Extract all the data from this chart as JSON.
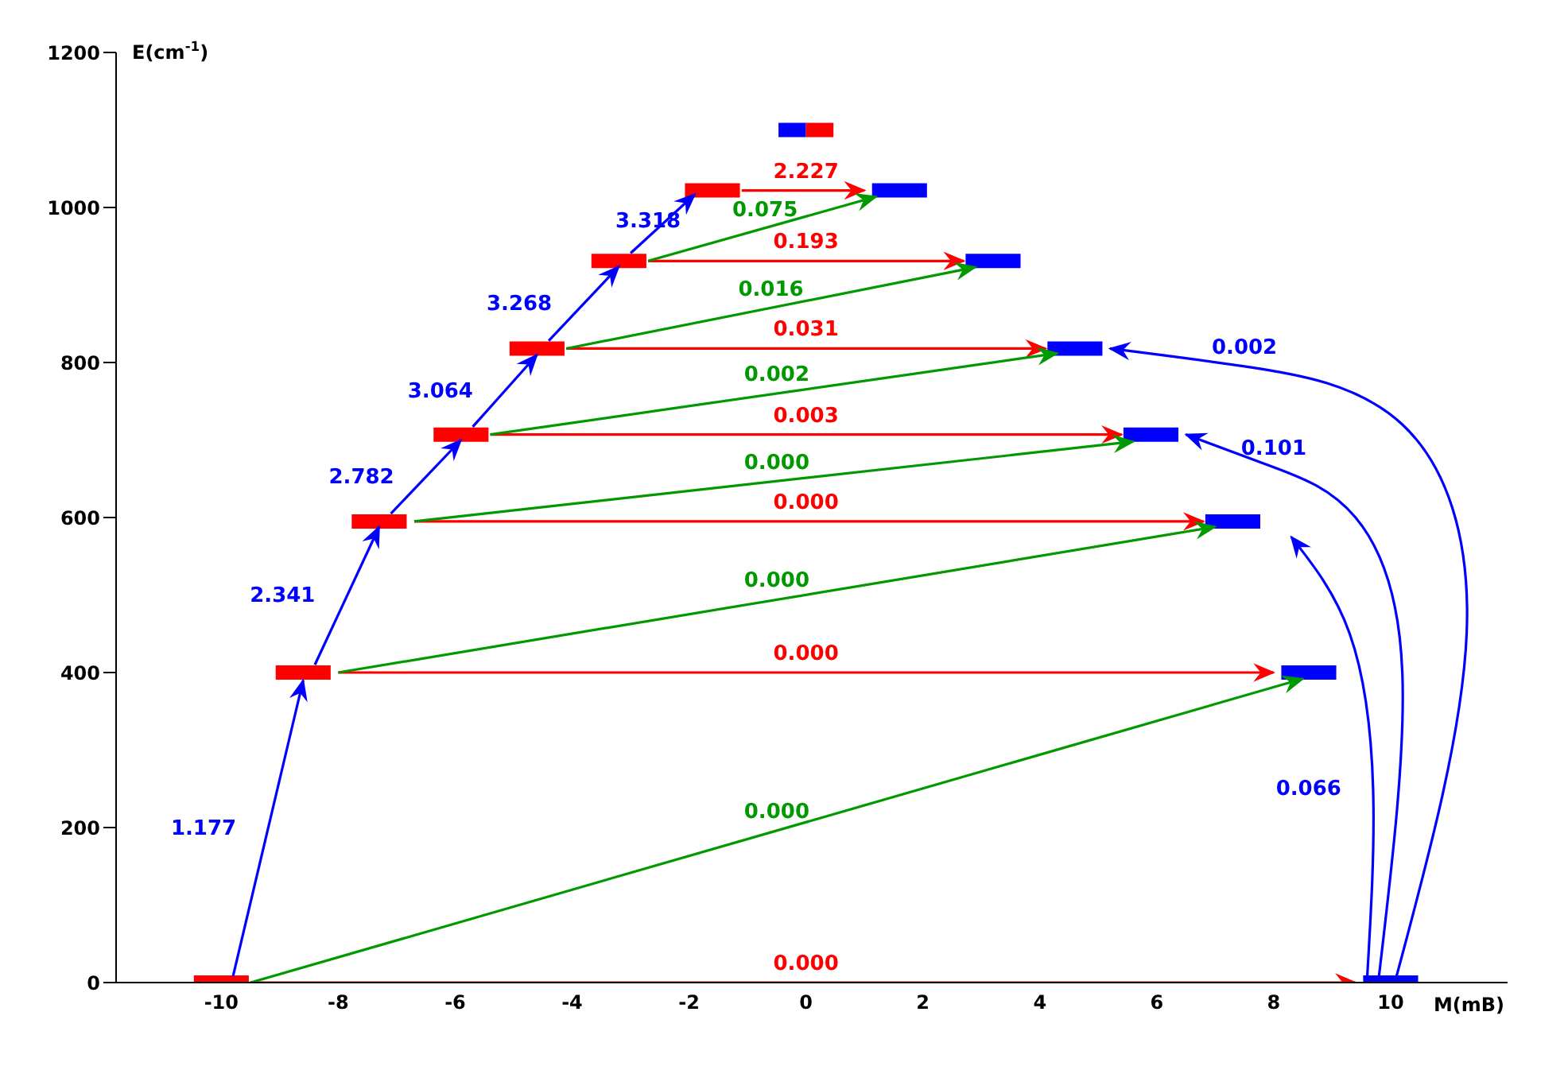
{
  "chart_data": {
    "type": "line",
    "xlabel": "M(mB)",
    "ylabel": "E(cm$^{-1}$)",
    "xlim": [
      -11.8,
      12
    ],
    "xticks": [
      -10,
      -8,
      -6,
      -4,
      -2,
      0,
      2,
      4,
      6,
      8,
      10
    ],
    "ylim": [
      0,
      1200
    ],
    "yticks": [
      0,
      200,
      400,
      600,
      800,
      1000,
      1200
    ],
    "series": [
      {
        "type": "step",
        "color": "#ff0000",
        "x": [
          -10.47,
          -9.53,
          null,
          -9.07,
          -8.13,
          null,
          -7.77,
          -6.83,
          null,
          -6.37,
          -5.43,
          null,
          -5.07,
          -4.13,
          null,
          -3.67,
          -2.73,
          null,
          -2.07,
          -1.13
        ],
        "values": [
          0,
          0,
          null,
          400,
          400,
          null,
          595,
          595,
          null,
          707,
          707,
          null,
          818,
          818,
          null,
          931,
          931,
          null,
          1022,
          1022
        ]
      },
      {
        "type": "step",
        "color": "#0000ff",
        "x": [
          9.53,
          10.47,
          null,
          8.13,
          9.07,
          null,
          6.83,
          7.77,
          null,
          5.43,
          6.37,
          null,
          4.13,
          5.07,
          null,
          2.73,
          3.67,
          null,
          1.13,
          2.07
        ],
        "values": [
          0,
          0,
          null,
          400,
          400,
          null,
          595,
          595,
          null,
          707,
          707,
          null,
          818,
          818,
          null,
          931,
          931,
          null,
          1022,
          1022
        ]
      },
      {
        "type": "step",
        "color": "#0000ff",
        "x": [
          -0.47,
          0
        ],
        "values": [
          1100,
          1100
        ]
      },
      {
        "type": "step",
        "color": "#ff0000",
        "x": [
          0,
          0.47
        ],
        "values": [
          1100,
          1100
        ]
      },
      {
        "color": "#ff0000",
        "x": [
          -9.5,
          9.4
        ],
        "values": [
          0,
          0
        ]
      },
      {
        "color": "#ff0000",
        "x": [
          -8,
          8
        ],
        "values": [
          400,
          400
        ]
      },
      {
        "color": "#ff0000",
        "x": [
          -6.7,
          6.8
        ],
        "values": [
          595,
          595
        ]
      },
      {
        "color": "#ff0000",
        "x": [
          -5.4,
          5.4
        ],
        "values": [
          707,
          707
        ]
      },
      {
        "color": "#ff0000",
        "x": [
          -4.1,
          4.1
        ],
        "values": [
          818,
          818
        ]
      },
      {
        "color": "#ff0000",
        "x": [
          -2.7,
          2.7
        ],
        "values": [
          931,
          931
        ]
      },
      {
        "color": "#ff0000",
        "x": [
          -1.1,
          1
        ],
        "values": [
          1022,
          1022
        ]
      },
      {
        "color": "#009900",
        "x": [
          -9.5,
          8.5
        ],
        "values": [
          0,
          392
        ]
      },
      {
        "color": "#009900",
        "x": [
          -8,
          7
        ],
        "values": [
          400,
          588
        ]
      },
      {
        "color": "#009900",
        "x": [
          -6.7,
          5.6
        ],
        "values": [
          595,
          698
        ]
      },
      {
        "color": "#009900",
        "x": [
          -5.4,
          4.3
        ],
        "values": [
          707,
          812
        ]
      },
      {
        "color": "#009900",
        "x": [
          -4.1,
          2.9
        ],
        "values": [
          818,
          923
        ]
      },
      {
        "color": "#009900",
        "x": [
          -2.7,
          1.2
        ],
        "values": [
          931,
          1014
        ]
      },
      {
        "color": "#0000ff",
        "x": [
          -9.8,
          -8.6
        ],
        "values": [
          8,
          390
        ]
      },
      {
        "color": "#0000ff",
        "x": [
          -8.4,
          -7.3
        ],
        "values": [
          410,
          588
        ]
      },
      {
        "color": "#0000ff",
        "x": [
          -7.1,
          -5.9
        ],
        "values": [
          605,
          700
        ]
      },
      {
        "color": "#0000ff",
        "x": [
          -5.7,
          -4.6
        ],
        "values": [
          717,
          810
        ]
      },
      {
        "color": "#0000ff",
        "x": [
          -4.4,
          -3.2
        ],
        "values": [
          828,
          924
        ]
      },
      {
        "color": "#0000ff",
        "x": [
          -3,
          -1.9
        ],
        "values": [
          941,
          1017
        ]
      },
      {
        "color": "#0000ff",
        "x": [
          9.6,
          9.7,
          9.3,
          8.3
        ],
        "values": [
          8,
          250,
          450,
          575
        ]
      },
      {
        "color": "#0000ff",
        "x": [
          9.8,
          10.2,
          9.4,
          8,
          6.5
        ],
        "values": [
          8,
          400,
          600,
          665,
          707
        ]
      },
      {
        "color": "#0000ff",
        "x": [
          10.1,
          11.3,
          10.2,
          7.5,
          5.2
        ],
        "values": [
          8,
          450,
          720,
          795,
          818
        ]
      }
    ],
    "annotations": [
      {
        "text": "0.000",
        "x": 0,
        "y": 0
      },
      {
        "text": "0.000",
        "x": 0,
        "y": 400
      },
      {
        "text": "0.000",
        "x": 0,
        "y": 595
      },
      {
        "text": "0.003",
        "x": 0,
        "y": 707
      },
      {
        "text": "0.031",
        "x": 0,
        "y": 818
      },
      {
        "text": "0.193",
        "x": 0,
        "y": 931
      },
      {
        "text": "2.227",
        "x": 0,
        "y": 1022
      },
      {
        "text": "0.000",
        "x": -0.5,
        "y": 196
      },
      {
        "text": "0.000",
        "x": -0.5,
        "y": 494
      },
      {
        "text": "0.000",
        "x": -0.5,
        "y": 646
      },
      {
        "text": "0.002",
        "x": -0.5,
        "y": 760
      },
      {
        "text": "0.016",
        "x": -0.6,
        "y": 870
      },
      {
        "text": "0.075",
        "x": -0.7,
        "y": 972
      },
      {
        "text": "1.177",
        "x": -9.2,
        "y": 199
      },
      {
        "text": "2.341",
        "x": -7.85,
        "y": 499
      },
      {
        "text": "2.782",
        "x": -6.5,
        "y": 652
      },
      {
        "text": "3.064",
        "x": -5.15,
        "y": 763
      },
      {
        "text": "3.268",
        "x": -3.8,
        "y": 876
      },
      {
        "text": "3.318",
        "x": -2.7,
        "y": 958
      },
      {
        "text": "0.066",
        "x": 9.7,
        "y": 250
      },
      {
        "text": "0.101",
        "x": 8,
        "y": 665
      },
      {
        "text": "0.002",
        "x": 7.5,
        "y": 795
      }
    ]
  }
}
